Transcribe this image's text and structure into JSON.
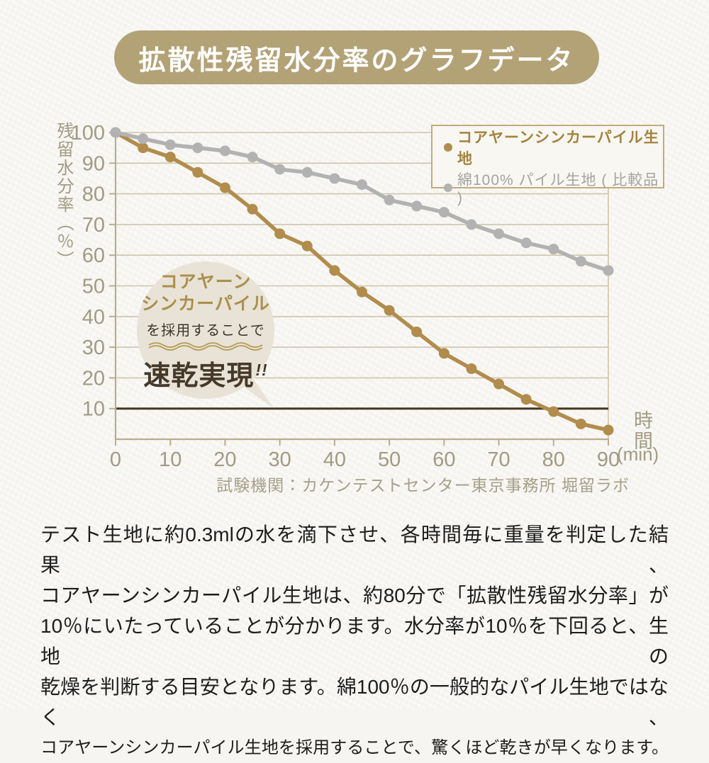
{
  "title": {
    "text": "拡散性残留水分率のグラフデータ"
  },
  "colors": {
    "paper": "#f6f5f1",
    "title_bg": "#b3a276",
    "title_text": "#ffffff",
    "grid": "#d0c4ac",
    "axis": "#b9ad8d",
    "tick_label": "#a29a82",
    "threshold_line": "#44371f",
    "series_main": "#b18c4c",
    "series_compare": "#b2b2b2",
    "legend_border": "#c3ab7c",
    "legend_main_text": "#a5823e",
    "legend_compare_text": "#a3a3a3",
    "bubble_bg": "#e8e3d6",
    "bubble_gold_text": "#ab8f4d",
    "bubble_dark_text": "#46392a",
    "caption_text": "#a79f89",
    "body_text": "#1d1d1d"
  },
  "chart_data": {
    "type": "line",
    "x": [
      0,
      5,
      10,
      15,
      20,
      25,
      30,
      35,
      40,
      45,
      50,
      55,
      60,
      65,
      70,
      75,
      80,
      85,
      90
    ],
    "series": [
      {
        "name": "コアヤーンシンカーパイル生地",
        "color": "#b18c4c",
        "values": [
          100,
          95,
          92,
          87,
          82,
          75,
          67,
          63,
          55,
          48,
          42,
          35,
          28,
          23,
          18,
          13,
          9,
          5,
          3
        ]
      },
      {
        "name": "綿100% パイル生地 ( 比較品 )",
        "color": "#b2b2b2",
        "values": [
          100,
          98,
          96,
          95,
          94,
          92,
          88,
          87,
          85,
          83,
          78,
          76,
          74,
          70,
          67,
          64,
          62,
          58,
          55
        ]
      }
    ],
    "ylabel": "残留水分率（％）",
    "xlabel_main": "時間",
    "xlabel_unit": "(min)",
    "ylim": [
      0,
      100
    ],
    "xlim": [
      0,
      90
    ],
    "yticks": [
      10,
      20,
      30,
      40,
      50,
      60,
      70,
      80,
      90,
      100
    ],
    "xticks": [
      0,
      10,
      20,
      30,
      40,
      50,
      60,
      70,
      80,
      90
    ],
    "threshold_y": 10,
    "grid": "horizontal",
    "legend_position": "top-right"
  },
  "bubble": {
    "line1": "コアヤーン",
    "line2": "シンカーパイル",
    "line3": "を採用することで",
    "headline": "速乾実現",
    "headline_suffix": "!!"
  },
  "caption": {
    "text": "試験機関：カケンテストセンター東京事務所 堀留ラボ"
  },
  "paragraph": {
    "lines": [
      "テスト生地に約0.3mlの水を滴下させ、各時間毎に重量を判定した結果、",
      "コアヤーンシンカーパイル生地は、約80分で「拡散性残留水分率」が",
      "10％にいたっていることが分かります。水分率が10％を下回ると、生地の",
      "乾燥を判断する目安となります。綿100％の一般的なパイル生地ではなく、",
      "コアヤーンシンカーパイル生地を採用することで、驚くほど乾きが早くなります。"
    ]
  }
}
